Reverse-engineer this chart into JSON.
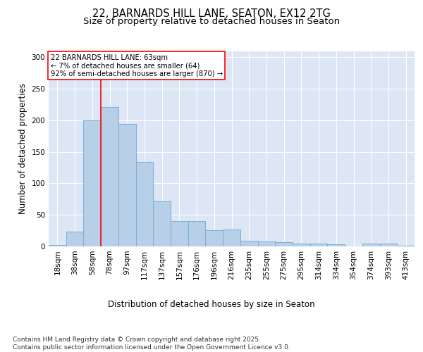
{
  "title_line1": "22, BARNARDS HILL LANE, SEATON, EX12 2TG",
  "title_line2": "Size of property relative to detached houses in Seaton",
  "xlabel": "Distribution of detached houses by size in Seaton",
  "ylabel": "Number of detached properties",
  "background_color": "#dce6f5",
  "bar_color": "#b8cfe8",
  "bar_edge_color": "#7aafd4",
  "annotation_text": "22 BARNARDS HILL LANE: 63sqm\n← 7% of detached houses are smaller (64)\n92% of semi-detached houses are larger (870) →",
  "red_line_x": 2.5,
  "categories": [
    "18sqm",
    "38sqm",
    "58sqm",
    "78sqm",
    "97sqm",
    "117sqm",
    "137sqm",
    "157sqm",
    "176sqm",
    "196sqm",
    "216sqm",
    "235sqm",
    "255sqm",
    "275sqm",
    "295sqm",
    "314sqm",
    "334sqm",
    "354sqm",
    "374sqm",
    "393sqm",
    "413sqm"
  ],
  "values": [
    2,
    23,
    200,
    221,
    194,
    134,
    72,
    40,
    40,
    26,
    27,
    9,
    8,
    7,
    5,
    4,
    3,
    0,
    4,
    5,
    1
  ],
  "ylim": [
    0,
    310
  ],
  "yticks": [
    0,
    50,
    100,
    150,
    200,
    250,
    300
  ],
  "footnote": "Contains HM Land Registry data © Crown copyright and database right 2025.\nContains public sector information licensed under the Open Government Licence v3.0.",
  "title_fontsize": 10.5,
  "subtitle_fontsize": 9.5,
  "axis_label_fontsize": 8.5,
  "tick_fontsize": 7.5,
  "footnote_fontsize": 6.5
}
